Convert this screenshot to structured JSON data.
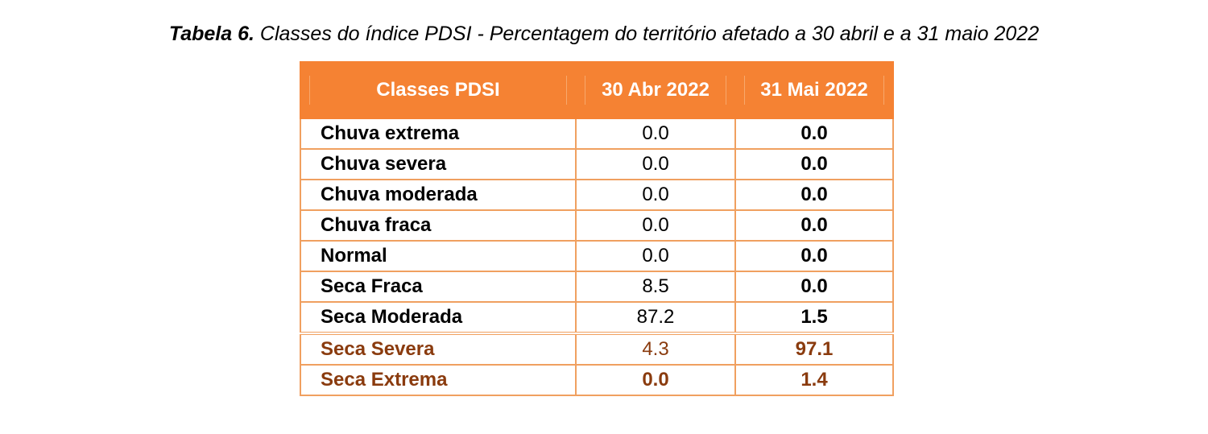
{
  "caption": {
    "label": "Tabela 6.",
    "text": " Classes do índice PDSI - Percentagem do território afetado a 30 abril e a 31 maio 2022"
  },
  "table": {
    "headers": [
      "Classes PDSI",
      "30 Abr 2022",
      "31 Mai 2022"
    ],
    "rows": [
      {
        "classe": "Chuva extrema",
        "abr": "0.0",
        "mai": "0.0"
      },
      {
        "classe": "Chuva severa",
        "abr": "0.0",
        "mai": "0.0"
      },
      {
        "classe": "Chuva moderada",
        "abr": "0.0",
        "mai": "0.0"
      },
      {
        "classe": "Chuva fraca",
        "abr": "0.0",
        "mai": "0.0"
      },
      {
        "classe": "Normal",
        "abr": "0.0",
        "mai": "0.0"
      },
      {
        "classe": "Seca Fraca",
        "abr": "8.5",
        "mai": "0.0"
      },
      {
        "classe": "Seca Moderada",
        "abr": "87.2",
        "mai": "1.5"
      },
      {
        "classe": "Seca Severa",
        "abr": "4.3",
        "mai": "97.1"
      },
      {
        "classe": "Seca Extrema",
        "abr": "0.0",
        "mai": "1.4"
      }
    ]
  },
  "colors": {
    "header_bg": "#f58233",
    "border": "#f0a060",
    "highlight_text": "#8a3b0e"
  }
}
